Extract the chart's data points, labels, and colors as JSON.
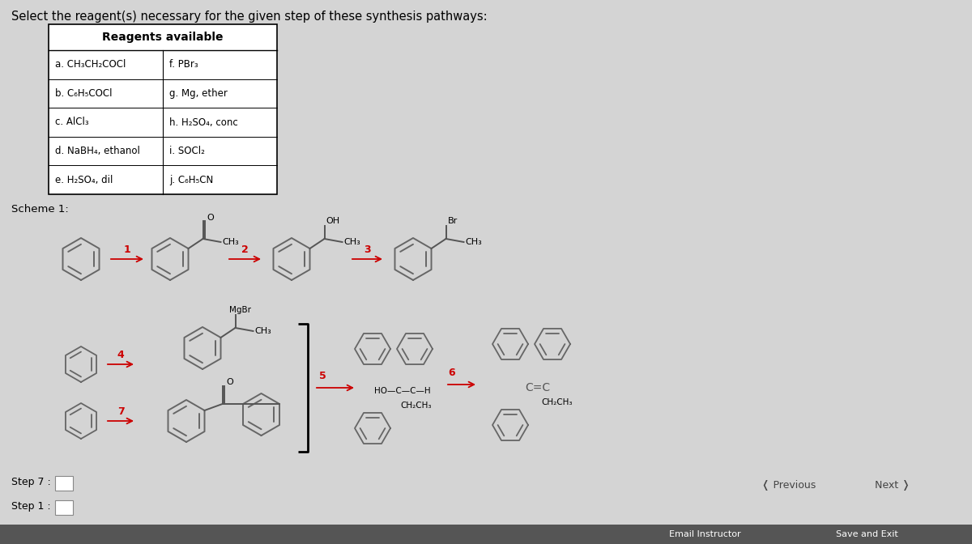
{
  "title": "Select the reagent(s) necessary for the given step of these synthesis pathways:",
  "title_fontsize": 10.5,
  "bg_color": "#d4d4d4",
  "table_header": "Reagents available",
  "reagents_left": [
    "a. CH₃CH₂COCl",
    "b. C₆H₅COCl",
    "c. AlCl₃",
    "d. NaBH₄, ethanol",
    "e. H₂SO₄, dil"
  ],
  "reagents_right": [
    "f. PBr₃",
    "g. Mg, ether",
    "h. H₂SO₄, conc",
    "i. SOCl₂",
    "j. C₆H₅CN"
  ],
  "scheme_label": "Scheme 1:",
  "step7_label": "Step 7 :",
  "step1_label": "Step 1 :",
  "previous_text": "Previous",
  "next_text": "Next",
  "email_instructor": "Email Instructor",
  "save_exit": "Save and Exit",
  "arrow_color": "#cc0000",
  "step_color": "#cc0000"
}
